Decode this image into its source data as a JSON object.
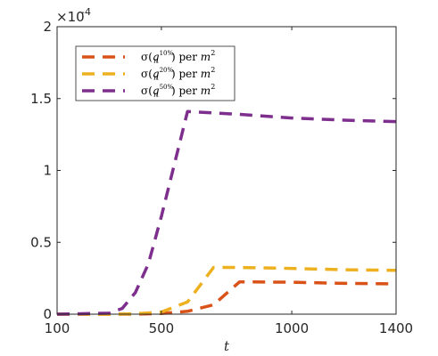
{
  "chart_data": {
    "type": "line",
    "xlabel": "t",
    "ylabel": "",
    "xlim": [
      100,
      1400
    ],
    "ylim": [
      0,
      0.0002
    ],
    "x_ticks": [
      100,
      500,
      1000,
      1400
    ],
    "y_ticks": [
      0,
      5e-05,
      0.0001,
      0.00015,
      0.0002
    ],
    "y_tick_labels": [
      "0",
      "0.5",
      "1",
      "1.5",
      "2"
    ],
    "y_exponent_label": "×10",
    "y_exponent_power": "-4",
    "grid": false,
    "legend_position": "top-left",
    "line_style": "dashed",
    "series": [
      {
        "name": "σ(q_r^{10%}) per m^2",
        "color": "#d95319",
        "legend": {
          "pre": "σ(",
          "var": "q",
          "sub": "r",
          "sup": "10%",
          "mid": ") per ",
          "unit": "m",
          "unit_sup": "2"
        },
        "points": [
          [
            100,
            0
          ],
          [
            300,
            0
          ],
          [
            400,
            0
          ],
          [
            500,
            5e-07
          ],
          [
            600,
            2e-06
          ],
          [
            700,
            6.5e-06
          ],
          [
            800,
            2.25e-05
          ],
          [
            1000,
            2.22e-05
          ],
          [
            1200,
            2.14e-05
          ],
          [
            1400,
            2.11e-05
          ]
        ]
      },
      {
        "name": "σ(q_r^{20%}) per m^2",
        "color": "#edb120",
        "legend": {
          "pre": "σ(",
          "var": "q",
          "sub": "r",
          "sup": "20%",
          "mid": ") per ",
          "unit": "m",
          "unit_sup": "2"
        },
        "points": [
          [
            100,
            0
          ],
          [
            300,
            0
          ],
          [
            400,
            3e-07
          ],
          [
            500,
            1.5e-06
          ],
          [
            600,
            8.5e-06
          ],
          [
            700,
            3.25e-05
          ],
          [
            800,
            3.25e-05
          ],
          [
            1000,
            3.18e-05
          ],
          [
            1200,
            3.09e-05
          ],
          [
            1400,
            3.05e-05
          ]
        ]
      },
      {
        "name": "σ(q_r^{50%}) per m^2",
        "color": "#7e2f8e",
        "legend": {
          "pre": "σ(",
          "var": "q",
          "sub": "r",
          "sup": "50%",
          "mid": ") per ",
          "unit": "m",
          "unit_sup": "2"
        },
        "points": [
          [
            100,
            0
          ],
          [
            300,
            7e-07
          ],
          [
            350,
            4e-06
          ],
          [
            400,
            1.5e-05
          ],
          [
            450,
            3.5e-05
          ],
          [
            500,
            6.8e-05
          ],
          [
            600,
            0.000141
          ],
          [
            800,
            0.000139
          ],
          [
            1000,
            0.0001365
          ],
          [
            1200,
            0.000135
          ],
          [
            1400,
            0.000134
          ]
        ]
      }
    ]
  }
}
